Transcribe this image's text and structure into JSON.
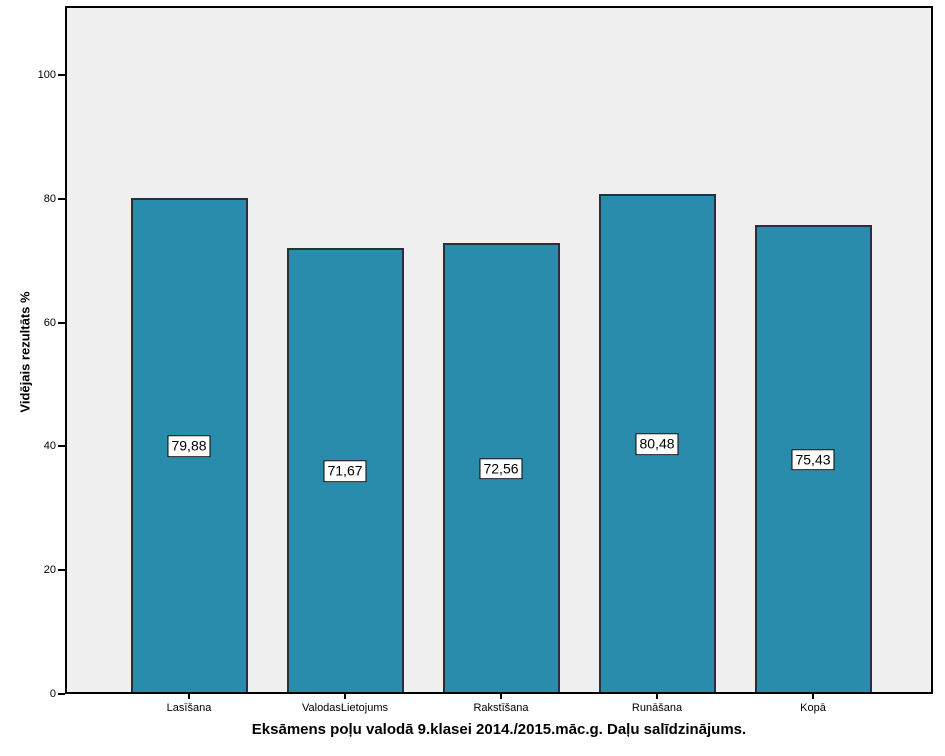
{
  "chart_data": {
    "type": "bar",
    "categories": [
      "Lasīšana",
      "ValodasLietojums",
      "Rakstīšana",
      "Runāšana",
      "Kopā"
    ],
    "values": [
      79.88,
      71.67,
      72.56,
      80.48,
      75.43
    ],
    "value_labels": [
      "79,88",
      "71,67",
      "72,56",
      "80,48",
      "75,43"
    ],
    "title": "Eksāmens poļu valodā 9.klasei 2014./2015.māc.g. Daļu salīdzinājums.",
    "ylabel": "Vidējais rezultāts %",
    "xlabel": "",
    "yticks": [
      0,
      20,
      40,
      60,
      80,
      100
    ],
    "ylim": [
      0,
      111
    ],
    "grid": false,
    "legend": null,
    "colors": {
      "bar_fill": "#298cad",
      "bar_border": "#25323a",
      "plot_background": "#efefef",
      "axis": "#000000",
      "label_box_background": "#ffffff"
    }
  }
}
